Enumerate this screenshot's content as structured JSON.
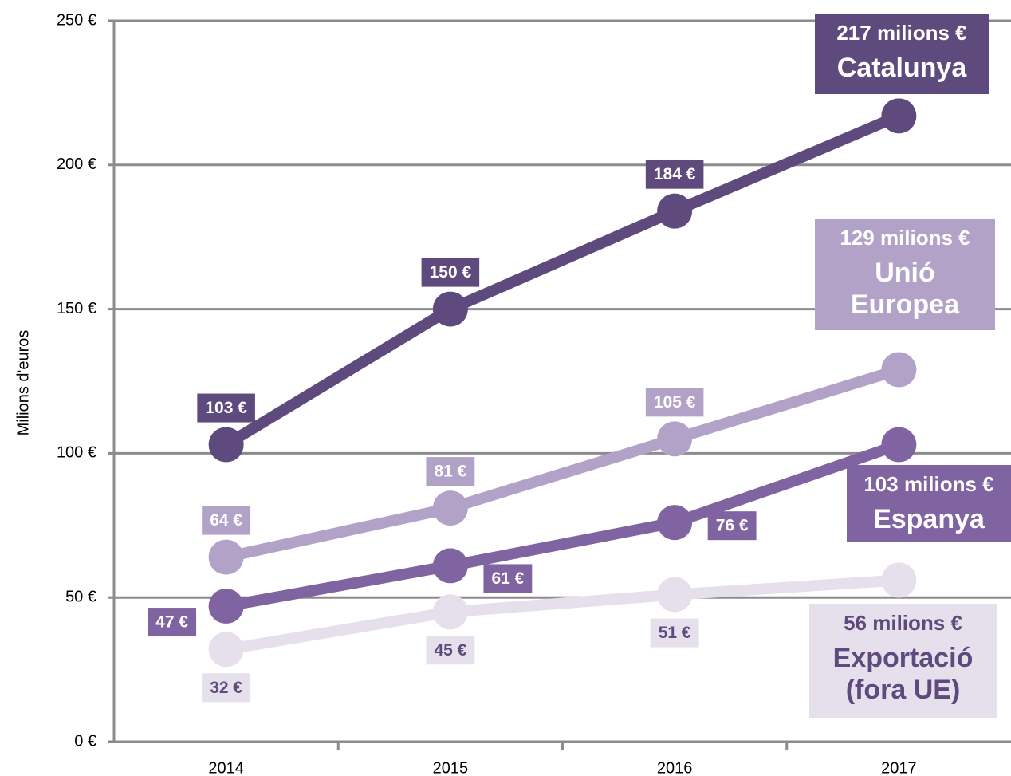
{
  "chart_data": {
    "type": "line",
    "y_label": "Milions d'euros",
    "categories": [
      "2014",
      "2015",
      "2016",
      "2017"
    ],
    "series": [
      {
        "name": "Catalunya",
        "color": "#5e4a7d",
        "label_color": "#ffffff",
        "values": [
          103,
          150,
          184,
          217
        ],
        "value_labels": [
          "103 €",
          "150 €",
          "184 €",
          "217 milions €"
        ]
      },
      {
        "name": "Unió Europea",
        "color": "#b3a2c8",
        "label_color": "#ffffff",
        "values": [
          64,
          81,
          105,
          129
        ],
        "value_labels": [
          "64 €",
          "81 €",
          "105 €",
          "129 milions €"
        ]
      },
      {
        "name": "Espanya",
        "color": "#8064a2",
        "label_color": "#ffffff",
        "values": [
          47,
          61,
          76,
          103
        ],
        "value_labels": [
          "47 €",
          "61 €",
          "76 €",
          "103 milions €"
        ]
      },
      {
        "name": "Exportació (fora UE)",
        "color": "#e5e0ec",
        "label_color": "#5e4a7d",
        "values": [
          32,
          45,
          51,
          56
        ],
        "value_labels": [
          "32 €",
          "45 €",
          "51 €",
          "56 milions €"
        ]
      }
    ],
    "ylim": [
      0,
      250
    ],
    "yticks": [
      {
        "value": 0,
        "label": "0 €"
      },
      {
        "value": 50,
        "label": "50 €"
      },
      {
        "value": 100,
        "label": "100 €"
      },
      {
        "value": 150,
        "label": "150 €"
      },
      {
        "value": 200,
        "label": "200 €"
      },
      {
        "value": 250,
        "label": "250 €"
      }
    ],
    "grid": true
  }
}
